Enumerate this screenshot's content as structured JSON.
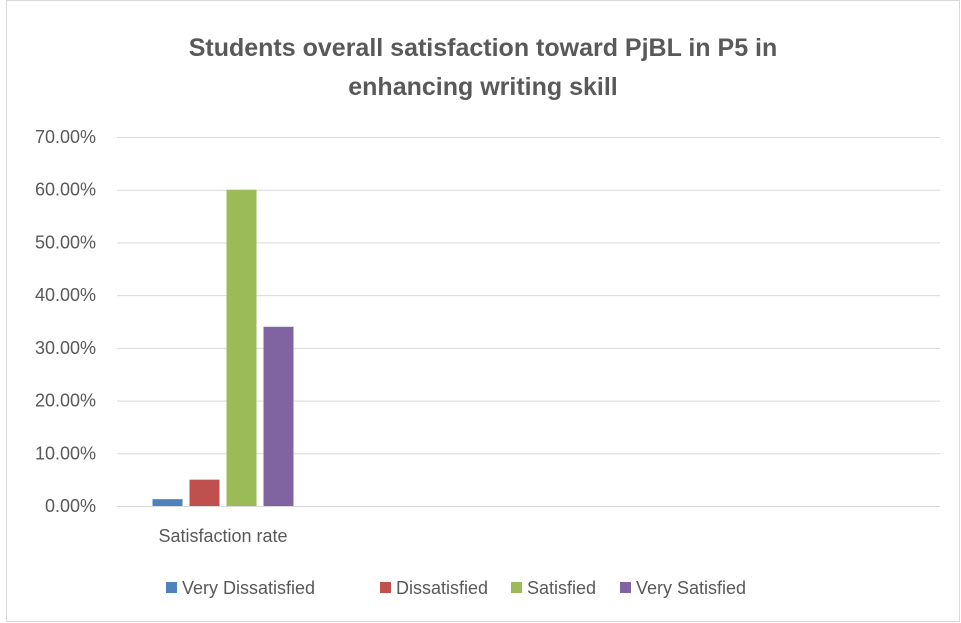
{
  "chart_data": {
    "type": "bar",
    "title_lines": [
      "Students overall satisfaction toward PjBL in P5 in",
      "enhancing writing skill"
    ],
    "categories": [
      "Satisfaction rate"
    ],
    "series": [
      {
        "name": "Very Dissatisfied",
        "values": [
          1.3
        ],
        "color": "#4f81bd"
      },
      {
        "name": "Dissatisfied",
        "values": [
          5.0
        ],
        "color": "#c0504d"
      },
      {
        "name": "Satisfied",
        "values": [
          60.0
        ],
        "color": "#9bbb59"
      },
      {
        "name": "Very Satisfied",
        "values": [
          34.0
        ],
        "color": "#8064a2"
      }
    ],
    "ylim": [
      0,
      70
    ],
    "yticks": [
      0,
      10,
      20,
      30,
      40,
      50,
      60,
      70
    ],
    "ytick_labels": [
      "0.00%",
      "10.00%",
      "20.00%",
      "30.00%",
      "40.00%",
      "50.00%",
      "60.00%",
      "70.00%"
    ],
    "grid": true,
    "legend_position": "bottom",
    "colors": {
      "grid": "#d9d9d9",
      "text": "#595959"
    }
  }
}
